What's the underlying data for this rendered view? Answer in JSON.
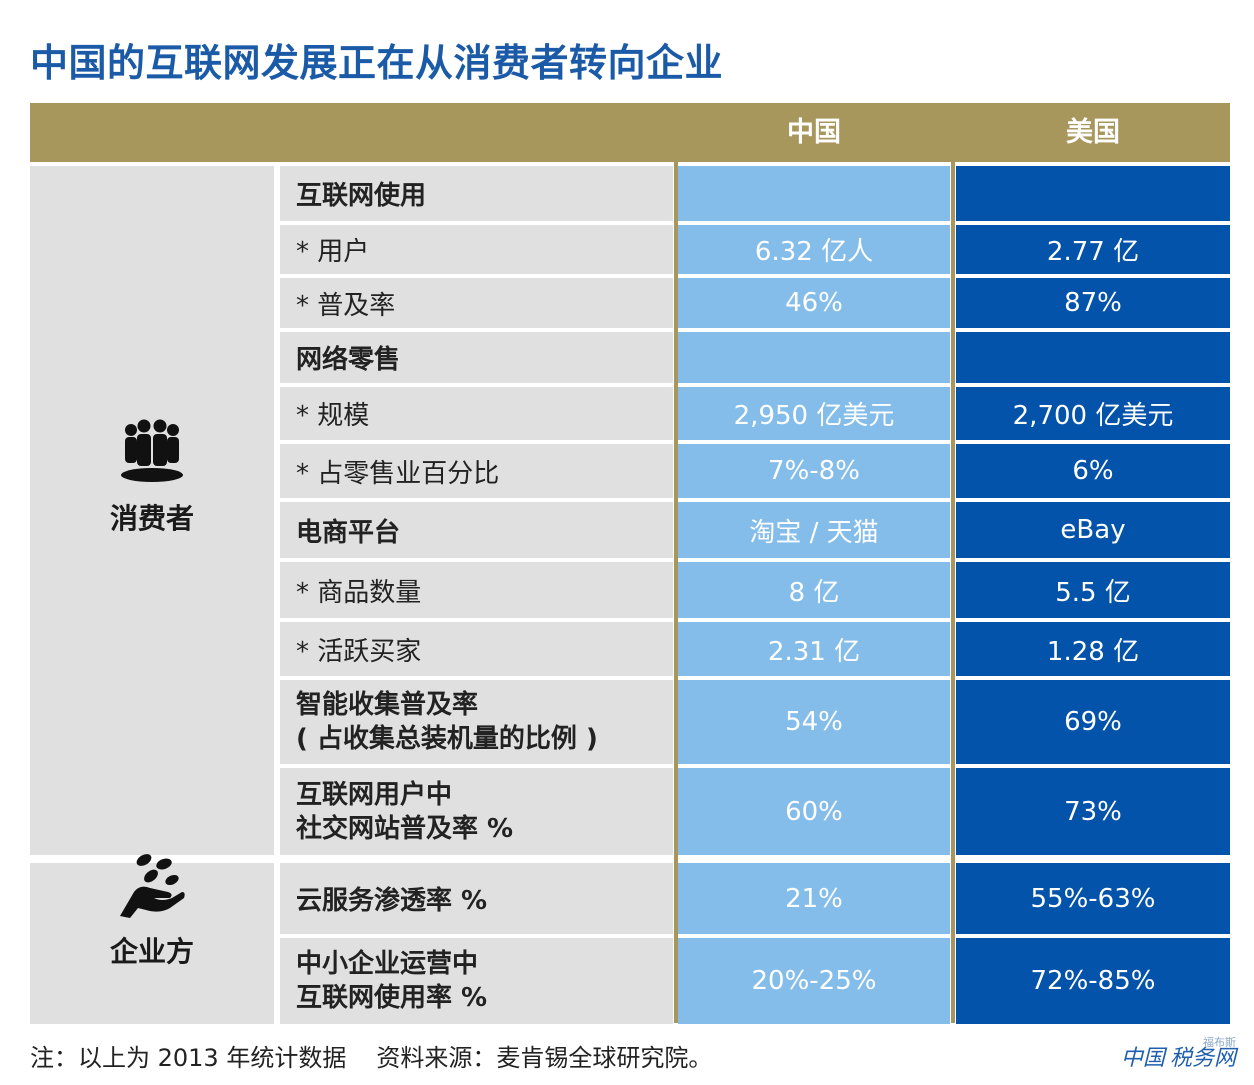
{
  "title": "中国的互联网发展正在从消费者转向企业",
  "chart_data": {
    "type": "table",
    "columns": [
      "中国",
      "美国"
    ],
    "categories": [
      {
        "name": "消费者",
        "icon": "people-group-icon"
      },
      {
        "name": "企业方",
        "icon": "hand-coins-icon"
      }
    ],
    "rows": [
      {
        "category": "消费者",
        "label": "互联网使用",
        "bold": true,
        "china": "",
        "usa": ""
      },
      {
        "category": "消费者",
        "label": "* 用户",
        "bold": false,
        "china": "6.32 亿人",
        "usa": "2.77 亿"
      },
      {
        "category": "消费者",
        "label": "* 普及率",
        "bold": false,
        "china": "46%",
        "usa": "87%"
      },
      {
        "category": "消费者",
        "label": "网络零售",
        "bold": true,
        "china": "",
        "usa": ""
      },
      {
        "category": "消费者",
        "label": "* 规模",
        "bold": false,
        "china": "2,950 亿美元",
        "usa": "2,700 亿美元"
      },
      {
        "category": "消费者",
        "label": "* 占零售业百分比",
        "bold": false,
        "china": "7%-8%",
        "usa": "6%"
      },
      {
        "category": "消费者",
        "label": "电商平台",
        "bold": true,
        "china": "淘宝 / 天猫",
        "usa": "eBay"
      },
      {
        "category": "消费者",
        "label": "* 商品数量",
        "bold": false,
        "china": "8 亿",
        "usa": "5.5 亿"
      },
      {
        "category": "消费者",
        "label": "* 活跃买家",
        "bold": false,
        "china": "2.31 亿",
        "usa": "1.28 亿"
      },
      {
        "category": "消费者",
        "label": "智能收集普及率",
        "label2": "( 占收集总装机量的比例 )",
        "bold": true,
        "china": "54%",
        "usa": "69%"
      },
      {
        "category": "消费者",
        "label": "互联网用户中",
        "label2": "社交网站普及率 %",
        "bold": true,
        "china": "60%",
        "usa": "73%"
      },
      {
        "category": "企业方",
        "label": "云服务渗透率 %",
        "bold": true,
        "china": "21%",
        "usa": "55%-63%"
      },
      {
        "category": "企业方",
        "label": "中小企业运营中",
        "label2": "互联网使用率 %",
        "bold": true,
        "china": "20%-25%",
        "usa": "72%-85%"
      }
    ],
    "colors": {
      "header": "#a7975c",
      "label_bg": "#e0e0e0",
      "china": "#84bde9",
      "usa": "#0453ab",
      "title": "#1a5aa6"
    }
  },
  "note": "注：以上为 2013 年统计数据",
  "source": "资料来源：麦肯锡全球研究院。",
  "watermark": {
    "text": "中国",
    "tag": "税务网",
    "small": "福布斯"
  }
}
